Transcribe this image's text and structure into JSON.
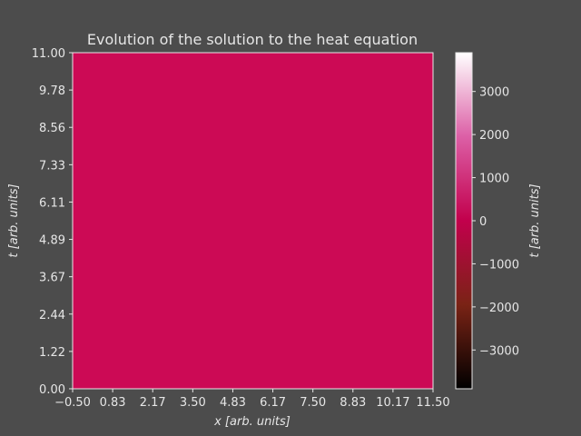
{
  "chart_data": {
    "type": "heatmap",
    "title": "Evolution of the solution to the heat equation",
    "xlabel": "x [arb. units]",
    "ylabel": "t [arb. units]",
    "colorbar_label": "t [arb. units]",
    "xlim": [
      -0.5,
      11.5
    ],
    "ylim": [
      0,
      11
    ],
    "x_ticks": [
      "−0.50",
      "0.83",
      "2.17",
      "3.50",
      "4.83",
      "6.17",
      "7.50",
      "8.83",
      "10.17",
      "11.50"
    ],
    "y_ticks": [
      "0.00",
      "1.22",
      "2.44",
      "3.67",
      "4.89",
      "6.11",
      "7.33",
      "8.56",
      "9.78",
      "11.00"
    ],
    "uniform_value": 0,
    "fill_color": "#cc0a55",
    "colorbar": {
      "range": [
        -3900,
        3900
      ],
      "ticks": [
        {
          "value": -3000,
          "label": "−3000"
        },
        {
          "value": -2000,
          "label": "−2000"
        },
        {
          "value": -1000,
          "label": "−1000"
        },
        {
          "value": 0,
          "label": "0"
        },
        {
          "value": 1000,
          "label": "1000"
        },
        {
          "value": 2000,
          "label": "2000"
        },
        {
          "value": 3000,
          "label": "3000"
        }
      ],
      "stops": [
        "#000000",
        "#7a2315",
        "#c2004c",
        "#dc5fa6",
        "#ffffff"
      ]
    }
  }
}
